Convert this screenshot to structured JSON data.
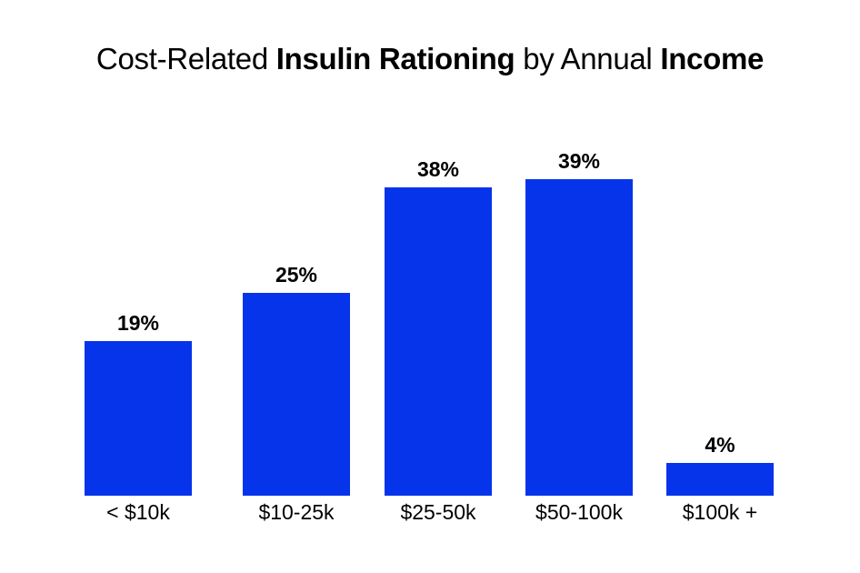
{
  "page": {
    "background_color": "#ffffff",
    "text_color": "#000000"
  },
  "title": {
    "full_text": "Cost-Related Insulin Rationing by Annual Income",
    "segments": [
      {
        "text": "Cost-Related ",
        "bold": false
      },
      {
        "text": "Insulin Rationing",
        "bold": true
      },
      {
        "text": " by Annual ",
        "bold": false
      },
      {
        "text": "Income",
        "bold": true
      }
    ]
  },
  "chart_data": {
    "type": "bar",
    "title": "Cost-Related Insulin Rationing by Annual Income",
    "categories": [
      "< $10k",
      "$10-25k",
      "$25-50k",
      "$50-100k",
      "$100k +"
    ],
    "values": [
      19,
      25,
      38,
      39,
      4
    ],
    "value_labels": [
      "19%",
      "25%",
      "38%",
      "39%",
      "4%"
    ],
    "xlabel": "",
    "ylabel": "",
    "ylim": [
      0,
      39
    ],
    "grid": false,
    "legend": false,
    "axis_lines": false,
    "bar_color": "#0634EB",
    "label_color": "#000000"
  }
}
